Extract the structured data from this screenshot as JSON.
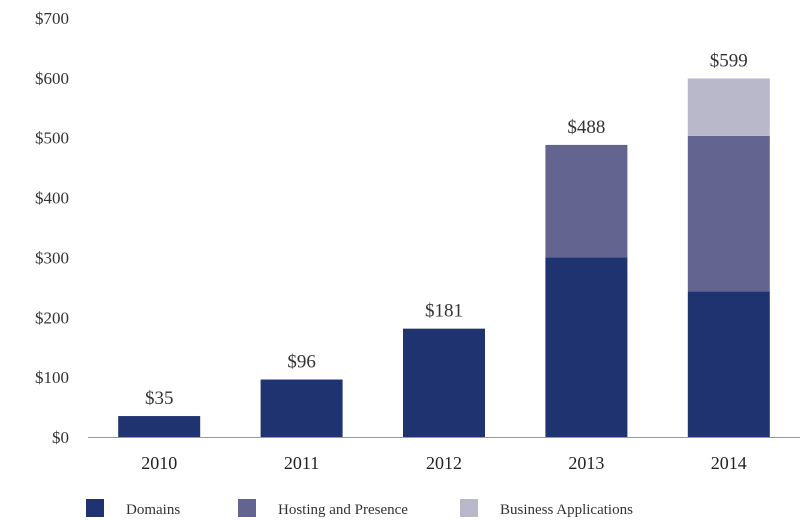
{
  "chart_data": {
    "type": "bar",
    "stacked": true,
    "categories": [
      "2010",
      "2011",
      "2012",
      "2013",
      "2014"
    ],
    "series": [
      {
        "name": "Domains",
        "color": "#1f3370",
        "values": [
          35,
          96,
          181,
          300,
          243
        ]
      },
      {
        "name": "Hosting and Presence",
        "color": "#636590",
        "values": [
          0,
          0,
          0,
          188,
          260
        ]
      },
      {
        "name": "Business Applications",
        "color": "#b8b8ca",
        "values": [
          0,
          0,
          0,
          0,
          96
        ]
      }
    ],
    "totals": [
      "$35",
      "$96",
      "$181",
      "$488",
      "$599"
    ],
    "ylim": [
      0,
      700
    ],
    "yticks": [
      0,
      100,
      200,
      300,
      400,
      500,
      600,
      700
    ],
    "ytick_labels": [
      "$0",
      "$100",
      "$200",
      "$300",
      "$400",
      "$500",
      "$600",
      "$700"
    ],
    "legend_position": "bottom",
    "grid": false
  }
}
